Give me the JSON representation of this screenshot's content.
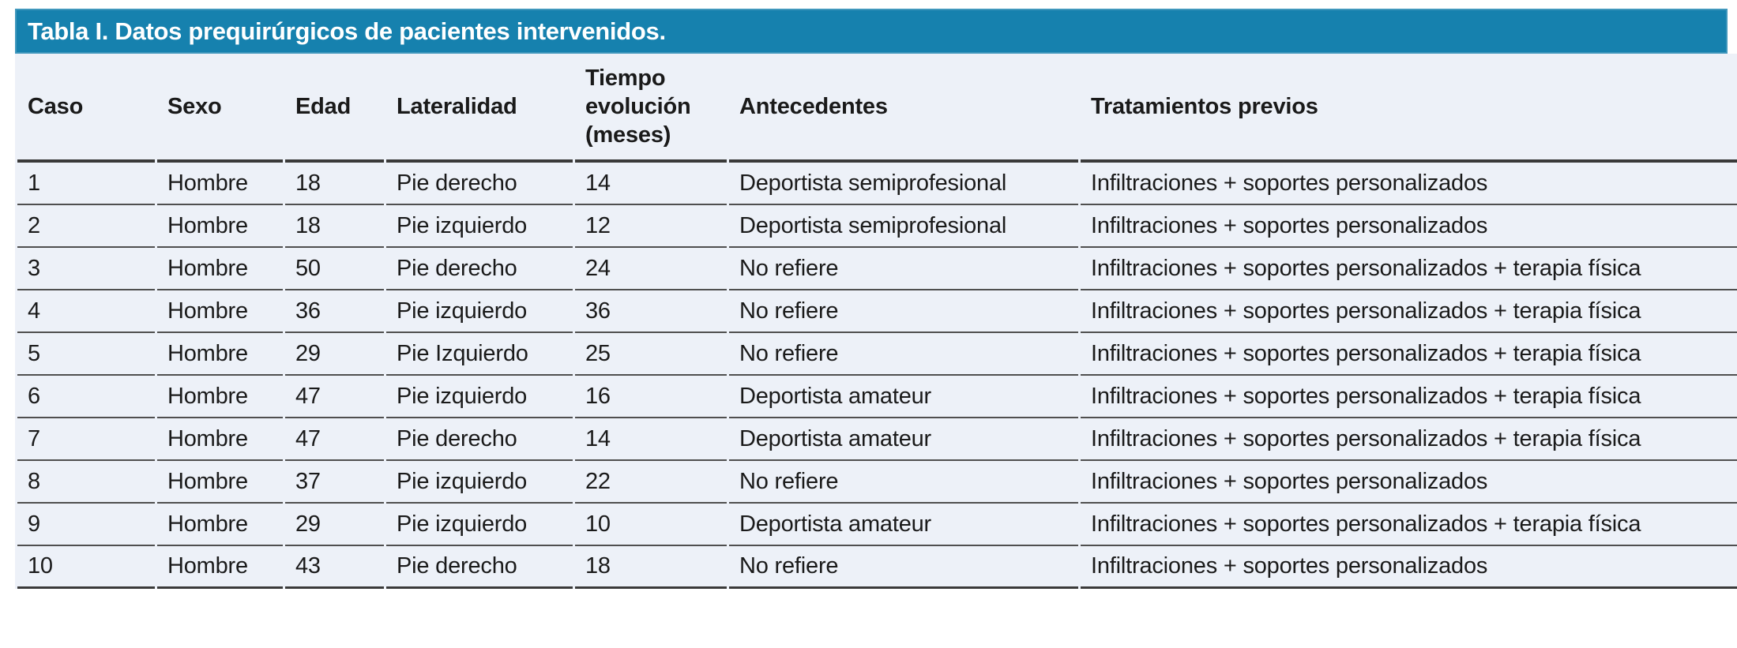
{
  "page": {
    "background": "#FFFFFF"
  },
  "table": {
    "title": "Tabla I. Datos prequirúrgicos de pacientes intervenidos.",
    "columns": [
      "Caso",
      "Sexo",
      "Edad",
      "Lateralidad",
      "Tiempo evolución (meses)",
      "Antecedentes",
      "Tratamientos previos"
    ],
    "rows": [
      [
        "1",
        "Hombre",
        "18",
        "Pie derecho",
        "14",
        "Deportista semiprofesional",
        "Infiltraciones + soportes personalizados"
      ],
      [
        "2",
        "Hombre",
        "18",
        "Pie izquierdo",
        "12",
        "Deportista semiprofesional",
        "Infiltraciones + soportes personalizados"
      ],
      [
        "3",
        "Hombre",
        "50",
        "Pie derecho",
        "24",
        "No refiere",
        "Infiltraciones + soportes personalizados + terapia física"
      ],
      [
        "4",
        "Hombre",
        "36",
        "Pie izquierdo",
        "36",
        "No refiere",
        "Infiltraciones + soportes personalizados + terapia física"
      ],
      [
        "5",
        "Hombre",
        "29",
        "Pie Izquierdo",
        "25",
        "No refiere",
        "Infiltraciones + soportes personalizados + terapia física"
      ],
      [
        "6",
        "Hombre",
        "47",
        "Pie izquierdo",
        "16",
        "Deportista amateur",
        "Infiltraciones + soportes personalizados + terapia física"
      ],
      [
        "7",
        "Hombre",
        "47",
        "Pie derecho",
        "14",
        "Deportista amateur",
        "Infiltraciones + soportes personalizados + terapia física"
      ],
      [
        "8",
        "Hombre",
        "37",
        "Pie izquierdo",
        "22",
        "No refiere",
        "Infiltraciones + soportes personalizados"
      ],
      [
        "9",
        "Hombre",
        "29",
        "Pie izquierdo",
        "10",
        "Deportista amateur",
        "Infiltraciones + soportes personalizados + terapia física"
      ],
      [
        "10",
        "Hombre",
        "43",
        "Pie derecho",
        "18",
        "No refiere",
        "Infiltraciones + soportes personalizados"
      ]
    ],
    "colors": {
      "title_bar_bg": "#1681AE",
      "title_text": "#FFFFFF",
      "body_bg": "#EDF1F8",
      "row_line": "#4F4F4F",
      "heavy_line": "#3A3A3A",
      "text": "#1A1A1A",
      "page_bg": "#FFFFFF"
    }
  }
}
